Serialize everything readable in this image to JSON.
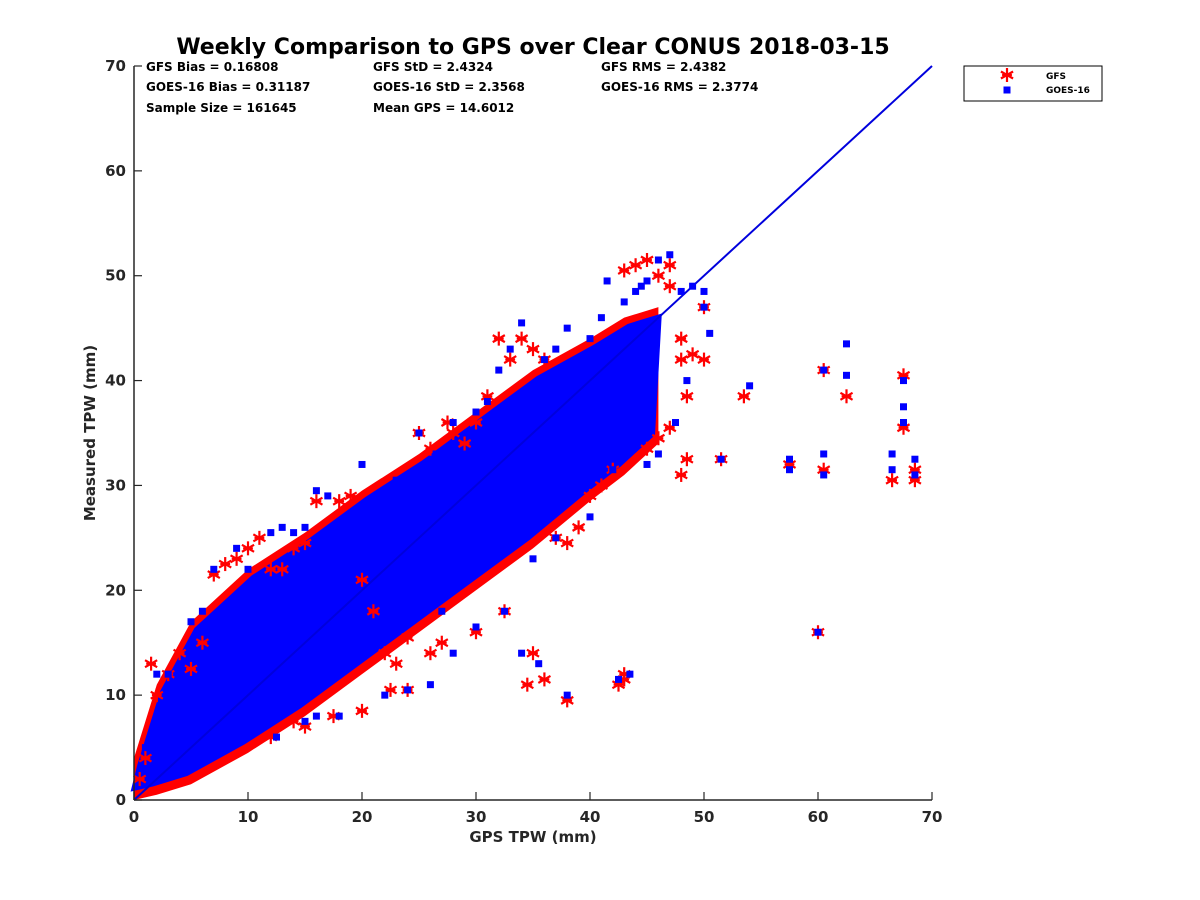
{
  "chart_data": {
    "type": "scatter",
    "title": "Weekly Comparison to GPS over Clear CONUS 2018-03-15",
    "xlabel": "GPS TPW (mm)",
    "ylabel": "Measured TPW (mm)",
    "xlim": [
      0,
      70
    ],
    "ylim": [
      0,
      70
    ],
    "xticks": [
      0,
      10,
      20,
      30,
      40,
      50,
      60,
      70
    ],
    "yticks": [
      0,
      10,
      20,
      30,
      40,
      50,
      60,
      70
    ],
    "grid": false,
    "legend_position": "outside-top-right",
    "stats": [
      [
        "GFS Bias = 0.16808",
        "GFS StD = 2.4324",
        "GFS RMS = 2.4382"
      ],
      [
        "GOES-16 Bias = 0.31187",
        "GOES-16 StD = 2.3568",
        "GOES-16 RMS = 2.3774"
      ],
      [
        "Sample Size = 161645",
        "Mean GPS = 14.6012"
      ]
    ],
    "reference_line": {
      "x": [
        0,
        70
      ],
      "y": [
        0,
        70
      ],
      "color": "#0000dd"
    },
    "density_band": {
      "x": [
        0,
        2,
        5,
        10,
        15,
        20,
        25,
        30,
        35,
        40,
        43,
        46
      ],
      "y_low": [
        0,
        0.5,
        1.5,
        4.5,
        8,
        12,
        16,
        20,
        24,
        28.5,
        31,
        34
      ],
      "y_high": [
        4,
        11,
        17,
        22,
        25.5,
        29.5,
        33,
        37,
        41,
        44,
        46,
        47
      ]
    },
    "series": [
      {
        "name": "GFS",
        "marker": "asterisk",
        "color": "#ff0000",
        "points": [
          [
            0.5,
            2
          ],
          [
            1,
            4
          ],
          [
            1.5,
            13
          ],
          [
            2,
            10
          ],
          [
            3,
            12
          ],
          [
            4,
            14
          ],
          [
            5,
            12.5
          ],
          [
            6,
            15
          ],
          [
            7,
            21.5
          ],
          [
            8,
            22.5
          ],
          [
            9,
            23
          ],
          [
            10,
            24
          ],
          [
            11,
            25
          ],
          [
            12,
            22
          ],
          [
            13,
            22
          ],
          [
            14,
            24
          ],
          [
            15,
            24.5
          ],
          [
            16,
            28.5
          ],
          [
            18,
            28.5
          ],
          [
            19,
            29
          ],
          [
            20,
            21
          ],
          [
            21,
            18
          ],
          [
            22,
            14
          ],
          [
            23,
            13
          ],
          [
            24,
            15.5
          ],
          [
            25,
            35
          ],
          [
            26,
            33.5
          ],
          [
            27.5,
            36
          ],
          [
            28,
            35
          ],
          [
            29,
            34
          ],
          [
            30,
            36
          ],
          [
            31,
            38.5
          ],
          [
            32,
            44
          ],
          [
            33,
            42
          ],
          [
            34,
            44
          ],
          [
            35,
            43
          ],
          [
            36,
            42
          ],
          [
            37,
            25
          ],
          [
            38,
            24.5
          ],
          [
            39,
            26
          ],
          [
            40,
            29
          ],
          [
            41,
            30
          ],
          [
            42,
            31.5
          ],
          [
            43,
            50.5
          ],
          [
            44,
            51
          ],
          [
            45,
            51.5
          ],
          [
            46,
            50
          ],
          [
            47,
            51
          ],
          [
            47,
            49
          ],
          [
            48,
            44
          ],
          [
            48,
            42
          ],
          [
            49,
            42.5
          ],
          [
            50,
            42
          ],
          [
            50,
            47
          ],
          [
            48.5,
            38.5
          ],
          [
            47,
            35.5
          ],
          [
            48,
            31
          ],
          [
            48.5,
            32.5
          ],
          [
            46,
            34.5
          ],
          [
            45,
            33.5
          ],
          [
            17.5,
            8
          ],
          [
            15,
            7
          ],
          [
            12,
            6
          ],
          [
            14,
            7.5
          ],
          [
            27,
            15
          ],
          [
            26,
            14
          ],
          [
            24,
            10.5
          ],
          [
            22.5,
            10.5
          ],
          [
            30,
            16
          ],
          [
            20,
            8.5
          ],
          [
            34.5,
            11
          ],
          [
            35,
            14
          ],
          [
            36,
            11.5
          ],
          [
            38,
            9.5
          ],
          [
            43,
            12
          ],
          [
            43,
            11.5
          ],
          [
            42.5,
            11
          ],
          [
            32.5,
            18
          ],
          [
            51.5,
            32.5
          ],
          [
            53.5,
            38.5
          ],
          [
            57.5,
            32
          ],
          [
            60,
            16
          ],
          [
            60.5,
            41
          ],
          [
            60.5,
            31.5
          ],
          [
            62.5,
            38.5
          ],
          [
            66.5,
            30.5
          ],
          [
            67.5,
            40.5
          ],
          [
            67.5,
            35.5
          ],
          [
            68.5,
            31.5
          ],
          [
            68.5,
            30.5
          ]
        ]
      },
      {
        "name": "GOES-16",
        "marker": "square",
        "color": "#0000ff",
        "points": [
          [
            1,
            5
          ],
          [
            2,
            12
          ],
          [
            3,
            12
          ],
          [
            5,
            17
          ],
          [
            6,
            18
          ],
          [
            7,
            22
          ],
          [
            9,
            24
          ],
          [
            10,
            22
          ],
          [
            11,
            21
          ],
          [
            12,
            25.5
          ],
          [
            13,
            26
          ],
          [
            14,
            25.5
          ],
          [
            15,
            26
          ],
          [
            16,
            29.5
          ],
          [
            17,
            29
          ],
          [
            20,
            32
          ],
          [
            23,
            30.5
          ],
          [
            25,
            35
          ],
          [
            26.5,
            33
          ],
          [
            28,
            36
          ],
          [
            30,
            37
          ],
          [
            31,
            38
          ],
          [
            32,
            41
          ],
          [
            33,
            43
          ],
          [
            34,
            45.5
          ],
          [
            36,
            42
          ],
          [
            37,
            43
          ],
          [
            38,
            45
          ],
          [
            40,
            44
          ],
          [
            41,
            46
          ],
          [
            41.5,
            49.5
          ],
          [
            43,
            47.5
          ],
          [
            44,
            48.5
          ],
          [
            44.5,
            49
          ],
          [
            45,
            49.5
          ],
          [
            46,
            51.5
          ],
          [
            47,
            52
          ],
          [
            48,
            48.5
          ],
          [
            49,
            49
          ],
          [
            50,
            48.5
          ],
          [
            50,
            47
          ],
          [
            50.5,
            44.5
          ],
          [
            48.5,
            40
          ],
          [
            47.5,
            36
          ],
          [
            46,
            33
          ],
          [
            45,
            32
          ],
          [
            42,
            31.5
          ],
          [
            40,
            27
          ],
          [
            37,
            25
          ],
          [
            35,
            23
          ],
          [
            18,
            8
          ],
          [
            15,
            7.5
          ],
          [
            12.5,
            6
          ],
          [
            16,
            8
          ],
          [
            22,
            10
          ],
          [
            24,
            10.5
          ],
          [
            26,
            11
          ],
          [
            28,
            14
          ],
          [
            30,
            16.5
          ],
          [
            27,
            18
          ],
          [
            34,
            14
          ],
          [
            35.5,
            13
          ],
          [
            38,
            10
          ],
          [
            42.5,
            11.5
          ],
          [
            43.5,
            12
          ],
          [
            32.5,
            18
          ],
          [
            51.5,
            32.5
          ],
          [
            54,
            39.5
          ],
          [
            57.5,
            32.5
          ],
          [
            57.5,
            31.5
          ],
          [
            60,
            16
          ],
          [
            60.5,
            41
          ],
          [
            60.5,
            33
          ],
          [
            60.5,
            31
          ],
          [
            62.5,
            43.5
          ],
          [
            62.5,
            40.5
          ],
          [
            66.5,
            33
          ],
          [
            66.5,
            31.5
          ],
          [
            67.5,
            40
          ],
          [
            67.5,
            37.5
          ],
          [
            67.5,
            36
          ],
          [
            68.5,
            32.5
          ],
          [
            68.5,
            31
          ]
        ]
      }
    ]
  }
}
